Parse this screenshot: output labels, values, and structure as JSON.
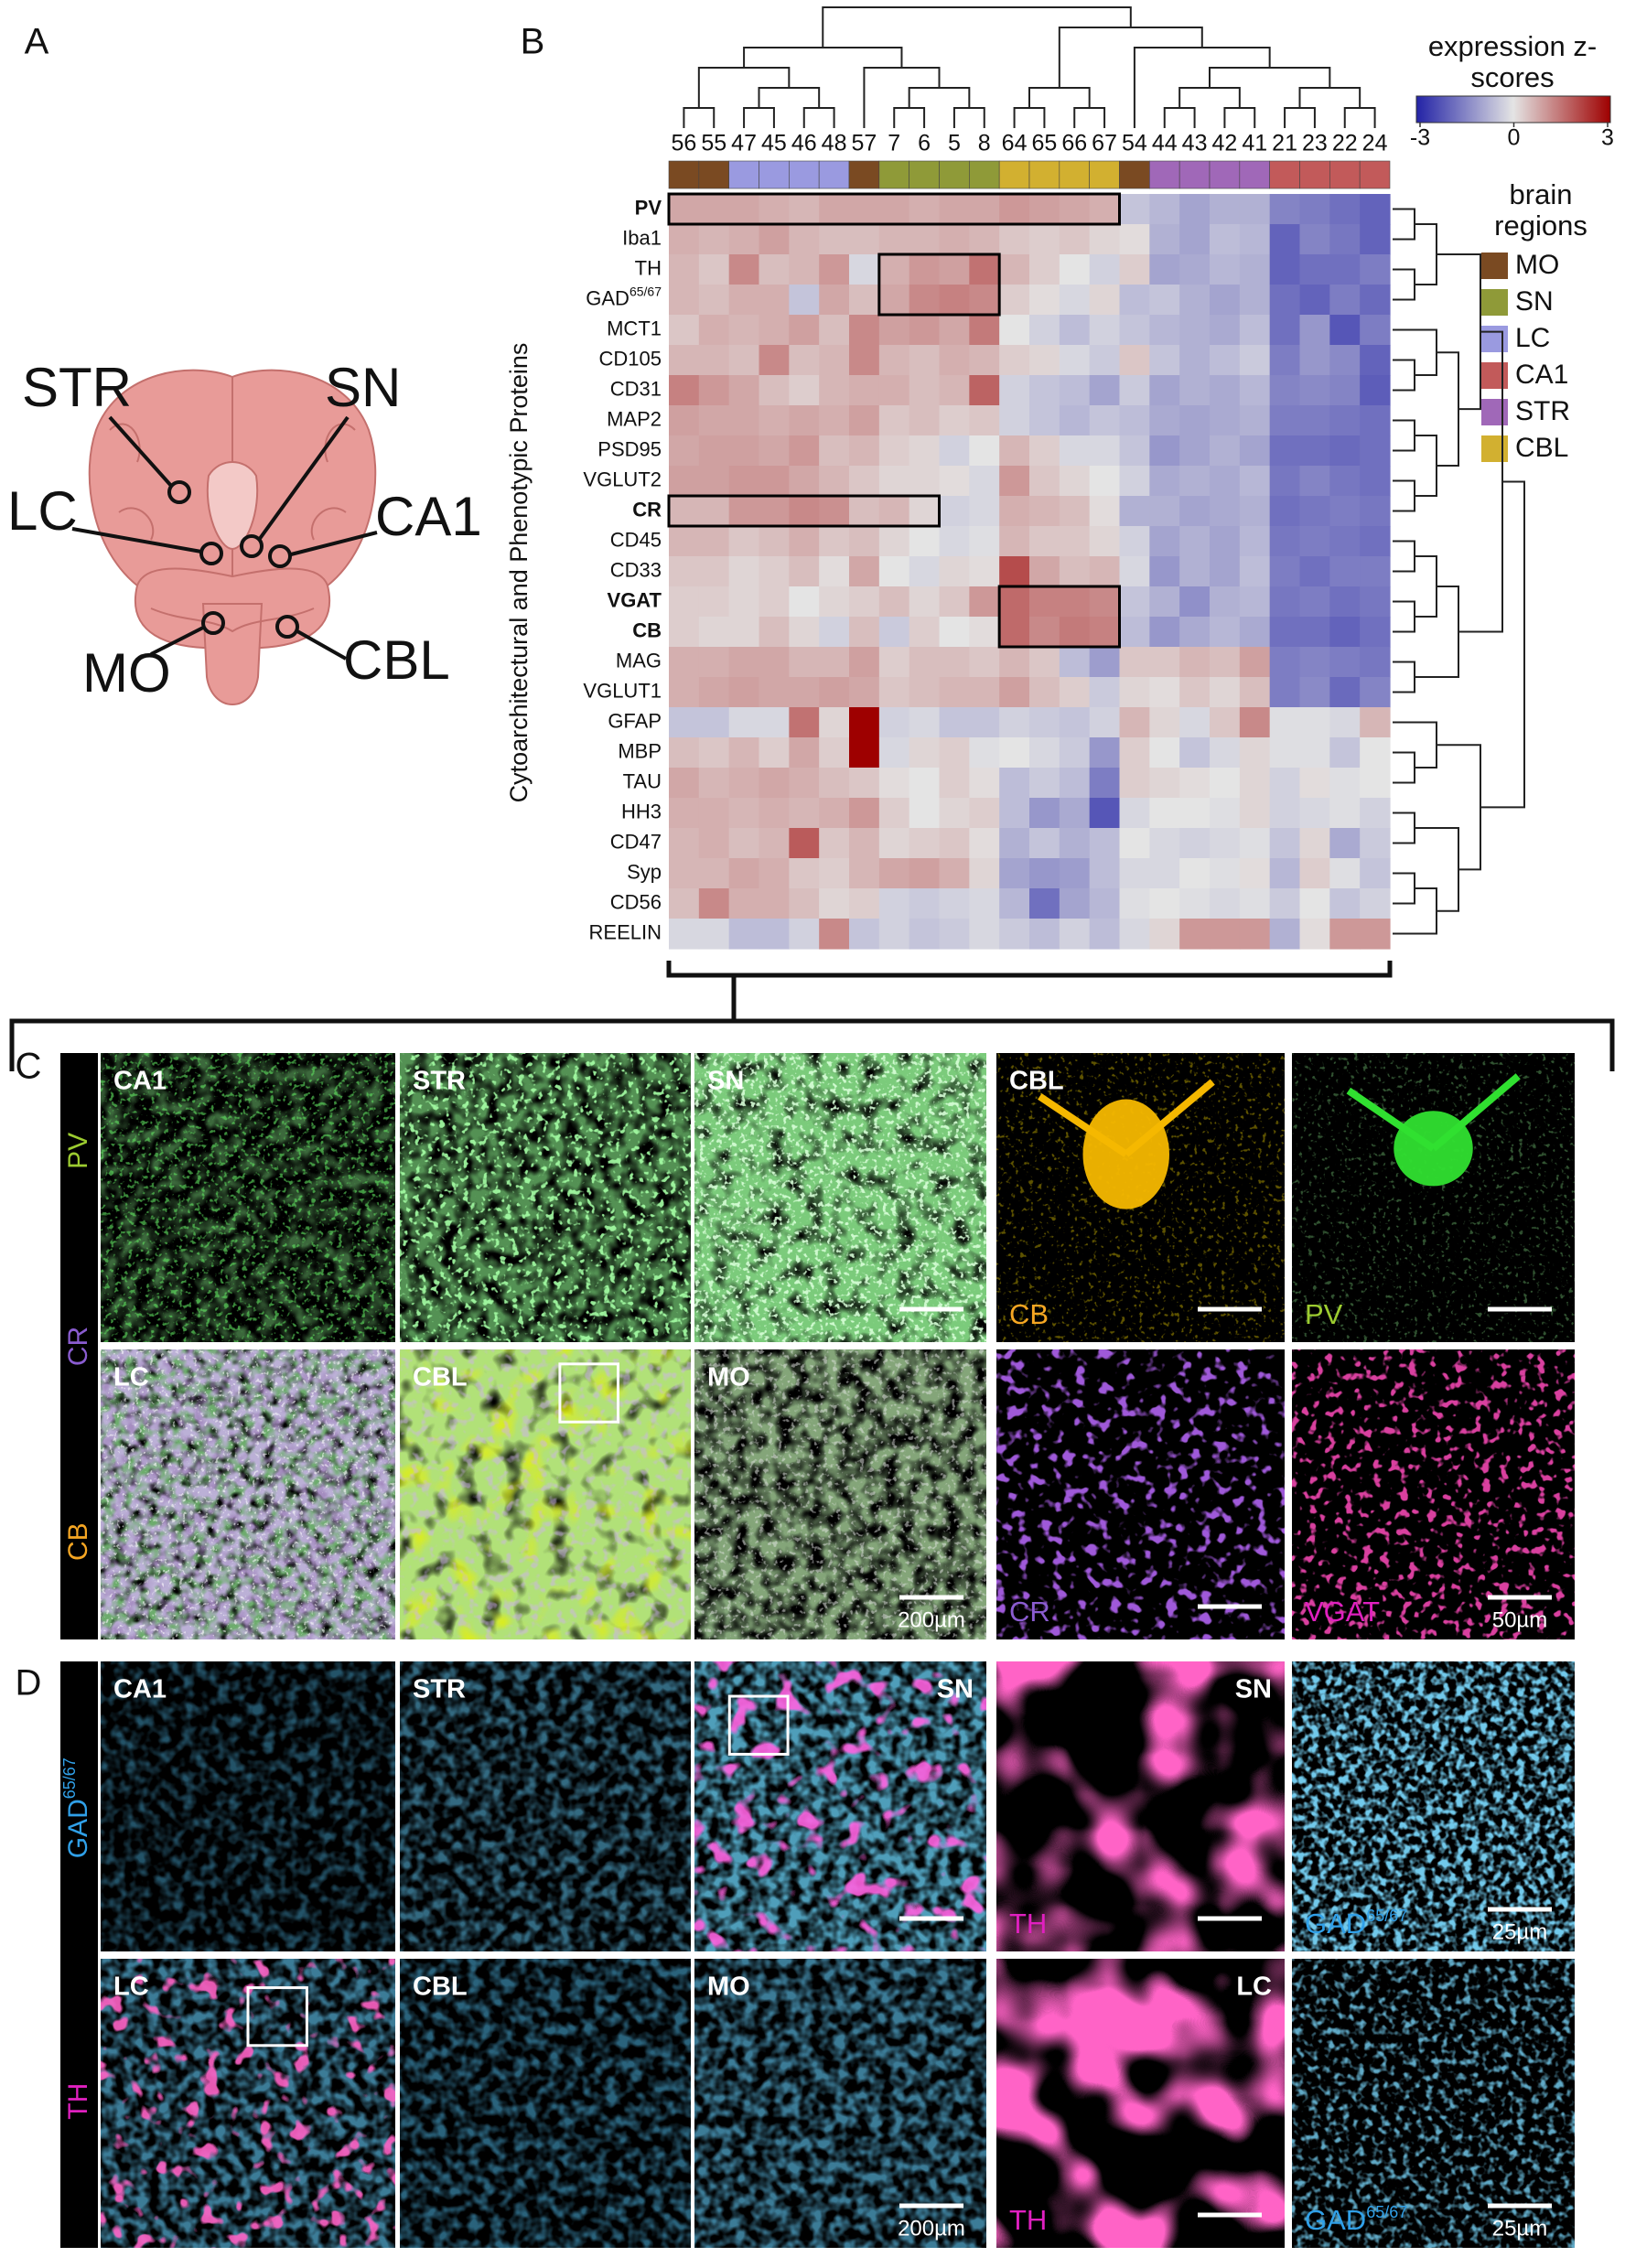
{
  "panel_letters": [
    "A",
    "B",
    "C",
    "D"
  ],
  "panel_a": {
    "regions": [
      "STR",
      "SN",
      "LC",
      "CA1",
      "MO",
      "CBL"
    ]
  },
  "chart_data": {
    "type": "heatmap",
    "y_label": "Cytoarchitectural and Phenotypic Proteins",
    "columns": [
      "56",
      "55",
      "47",
      "45",
      "46",
      "48",
      "57",
      "7",
      "6",
      "5",
      "8",
      "64",
      "65",
      "66",
      "67",
      "54",
      "44",
      "43",
      "42",
      "41",
      "21",
      "23",
      "22",
      "24"
    ],
    "column_regions": [
      "MO",
      "MO",
      "LC",
      "LC",
      "LC",
      "LC",
      "MO",
      "SN",
      "SN",
      "SN",
      "SN",
      "CBL",
      "CBL",
      "CBL",
      "CBL",
      "MO",
      "STR",
      "STR",
      "STR",
      "STR",
      "CA1",
      "CA1",
      "CA1",
      "CA1"
    ],
    "rows": [
      {
        "label": "PV",
        "bold": true
      },
      {
        "label": "Iba1"
      },
      {
        "label": "TH"
      },
      {
        "label": "GAD",
        "sup": "65/67"
      },
      {
        "label": "MCT1"
      },
      {
        "label": "CD105"
      },
      {
        "label": "CD31"
      },
      {
        "label": "MAP2"
      },
      {
        "label": "PSD95"
      },
      {
        "label": "VGLUT2"
      },
      {
        "label": "CR",
        "bold": true
      },
      {
        "label": "CD45"
      },
      {
        "label": "CD33"
      },
      {
        "label": "VGAT",
        "bold": true
      },
      {
        "label": "CB",
        "bold": true
      },
      {
        "label": "MAG"
      },
      {
        "label": "VGLUT1"
      },
      {
        "label": "GFAP"
      },
      {
        "label": "MBP"
      },
      {
        "label": "TAU"
      },
      {
        "label": "HH3"
      },
      {
        "label": "CD47"
      },
      {
        "label": "Syp"
      },
      {
        "label": "CD56"
      },
      {
        "label": "REELIN"
      }
    ],
    "values": [
      [
        0.8,
        0.8,
        0.8,
        0.7,
        0.6,
        0.8,
        0.8,
        0.8,
        0.7,
        0.8,
        0.8,
        1,
        0.9,
        0.8,
        0.7,
        -0.5,
        -0.7,
        -1,
        -0.8,
        -0.8,
        -1.5,
        -1.6,
        -1.8,
        -2
      ],
      [
        0.7,
        0.6,
        0.7,
        0.9,
        0.6,
        0.5,
        0.5,
        0.6,
        0.6,
        0.7,
        0.6,
        0.4,
        0.3,
        0.4,
        0.2,
        0.1,
        -0.8,
        -1,
        -0.6,
        -0.7,
        -2,
        -1.5,
        -1.7,
        -2
      ],
      [
        0.6,
        0.4,
        1.2,
        0.5,
        0.6,
        1,
        -0.2,
        0.7,
        1,
        0.9,
        1.5,
        0.6,
        0.3,
        0,
        -0.3,
        0.3,
        -1,
        -0.9,
        -0.7,
        -0.8,
        -2,
        -1.8,
        -1.8,
        -1.6
      ],
      [
        0.6,
        0.5,
        0.7,
        0.7,
        -0.5,
        0.8,
        0.5,
        0.8,
        1.2,
        1.3,
        1.2,
        0.3,
        0.1,
        -0.2,
        0.2,
        -0.6,
        -0.5,
        -0.8,
        -1,
        -0.8,
        -1.8,
        -2,
        -1.6,
        -1.9
      ],
      [
        0.4,
        0.7,
        0.6,
        0.7,
        0.9,
        0.5,
        1.2,
        0.9,
        1,
        0.8,
        1.4,
        0,
        -0.3,
        -0.6,
        -0.3,
        -0.5,
        -0.7,
        -0.8,
        -0.9,
        -0.6,
        -1.8,
        -1.2,
        -2.2,
        -1.6
      ],
      [
        0.6,
        0.6,
        0.5,
        1.2,
        0.5,
        0.6,
        1.2,
        0.6,
        0.5,
        0.7,
        0.6,
        0.3,
        0.2,
        -0.2,
        -0.4,
        0.4,
        -0.5,
        -0.8,
        -0.6,
        -0.4,
        -1.6,
        -1.2,
        -1.4,
        -2
      ],
      [
        1.3,
        1,
        0.8,
        0.5,
        0.3,
        0.6,
        0.7,
        0.7,
        0.5,
        0.6,
        1.7,
        -0.3,
        -0.5,
        -0.6,
        -1,
        -0.4,
        -1,
        -0.8,
        -0.9,
        -0.7,
        -1.5,
        -1.4,
        -1.5,
        -2.1
      ],
      [
        0.9,
        0.8,
        0.8,
        0.7,
        0.8,
        0.7,
        0.9,
        0.4,
        0.5,
        0.3,
        0.4,
        -0.3,
        -0.5,
        -0.7,
        -0.5,
        -0.6,
        -0.9,
        -1,
        -0.9,
        -0.8,
        -1.6,
        -1.6,
        -1.7,
        -1.8
      ],
      [
        0.8,
        0.9,
        0.9,
        0.8,
        1,
        0.5,
        0.6,
        0.3,
        0.2,
        -0.3,
        0,
        0.6,
        0.3,
        -0.2,
        -0.2,
        -0.5,
        -1.2,
        -1,
        -0.8,
        -1,
        -1.8,
        -1.8,
        -1.9,
        -1.8
      ],
      [
        0.9,
        0.9,
        1,
        1,
        0.8,
        0.6,
        0.4,
        0.2,
        0.2,
        0.1,
        -0.2,
        1,
        0.4,
        0.2,
        0,
        -0.3,
        -0.9,
        -0.8,
        -0.9,
        -0.7,
        -1.7,
        -1.5,
        -1.7,
        -1.8
      ],
      [
        0.6,
        0.6,
        1,
        1,
        1.2,
        1.1,
        0.5,
        0.6,
        0.2,
        -0.3,
        -0.2,
        0.7,
        0.6,
        0.5,
        0.1,
        -0.8,
        -0.8,
        -1,
        -0.9,
        -0.8,
        -1.8,
        -1.7,
        -1.6,
        -1.7
      ],
      [
        0.6,
        0.6,
        0.4,
        0.5,
        0.7,
        0.4,
        0.5,
        0.2,
        0,
        -0.2,
        -0.1,
        0.6,
        0.4,
        0.4,
        0.2,
        -0.3,
        -1,
        -0.8,
        -1,
        -0.7,
        -1.7,
        -1.6,
        -1.7,
        -1.8
      ],
      [
        0.4,
        0.4,
        0.2,
        0.3,
        0.5,
        0.1,
        0.8,
        0,
        -0.2,
        0.2,
        0.1,
        2,
        0.8,
        0.5,
        0.6,
        -0.2,
        -1.2,
        -0.8,
        -1,
        -0.6,
        -1.6,
        -1.8,
        -1.6,
        -1.6
      ],
      [
        0.3,
        0.3,
        0.2,
        0.3,
        0,
        0.2,
        0.3,
        0.5,
        0.2,
        0.4,
        1,
        1.6,
        1.3,
        1.3,
        1.2,
        -0.5,
        -0.8,
        -1.3,
        -0.8,
        -0.7,
        -1.7,
        -1.6,
        -1.8,
        -1.7
      ],
      [
        0.3,
        0.2,
        0.2,
        0.5,
        0.2,
        -0.3,
        0.5,
        -0.4,
        0.3,
        0,
        0.1,
        1.6,
        1.2,
        1.4,
        1.3,
        -0.6,
        -1.2,
        -0.9,
        -0.7,
        -0.9,
        -1.8,
        -1.8,
        -2,
        -1.8
      ],
      [
        0.7,
        0.7,
        0.8,
        0.8,
        0.6,
        0.6,
        0.9,
        0.3,
        0.5,
        0.5,
        0.4,
        0.6,
        0.4,
        -0.6,
        -1.1,
        0.4,
        0.4,
        0.6,
        0.5,
        0.9,
        -1.6,
        -1.5,
        -1.6,
        -1.7
      ],
      [
        0.7,
        0.8,
        0.9,
        0.8,
        0.8,
        0.9,
        0.8,
        0.4,
        0.5,
        0.6,
        0.6,
        0.9,
        0.5,
        0.3,
        -0.4,
        0.2,
        0.1,
        0.4,
        0.2,
        0.5,
        -1.6,
        -1.4,
        -1.9,
        -1.5
      ],
      [
        -0.5,
        -0.5,
        -0.2,
        -0.2,
        1.5,
        0.2,
        3,
        -0.3,
        -0.2,
        -0.5,
        -0.5,
        -0.3,
        -0.4,
        -0.5,
        -0.3,
        0.6,
        0.2,
        -0.2,
        0.4,
        1.2,
        -0.1,
        -0.1,
        -0.2,
        0.6
      ],
      [
        0.5,
        0.4,
        0.6,
        0.3,
        0.8,
        0.3,
        3,
        -0.2,
        0.2,
        0.3,
        -0.1,
        0,
        -0.2,
        -0.4,
        -1.2,
        0.3,
        0,
        -0.5,
        -0.2,
        0.2,
        -0.1,
        -0.1,
        -0.5,
        0
      ],
      [
        0.8,
        0.6,
        0.7,
        0.8,
        0.7,
        0.5,
        0.4,
        0.1,
        0,
        0.3,
        0.1,
        -0.6,
        -0.4,
        -0.6,
        -1.6,
        0.3,
        0.2,
        0.1,
        0,
        0.2,
        -0.3,
        0.1,
        -0.1,
        0
      ],
      [
        0.7,
        0.7,
        0.6,
        0.7,
        0.6,
        0.7,
        1,
        0.3,
        0,
        0.2,
        0.3,
        -0.6,
        -1.2,
        -0.9,
        -2.2,
        -0.2,
        0,
        0,
        -0.1,
        0.2,
        -0.3,
        -0.2,
        -0.1,
        -0.3
      ],
      [
        0.6,
        0.7,
        0.5,
        0.6,
        1.8,
        0.4,
        0.6,
        0.2,
        0.3,
        0.4,
        0.1,
        -0.8,
        -0.5,
        -0.8,
        -0.6,
        0,
        -0.2,
        -0.3,
        -0.2,
        -0.1,
        -0.5,
        0.2,
        -0.9,
        -0.4
      ],
      [
        0.6,
        0.6,
        0.8,
        0.7,
        0.4,
        0.3,
        0.6,
        0.8,
        0.9,
        0.7,
        0.2,
        -1,
        -1.2,
        -1.1,
        -0.6,
        -0.2,
        -0.2,
        0,
        -0.1,
        0.1,
        -0.7,
        0.3,
        -0.1,
        -0.5
      ],
      [
        0.5,
        1.2,
        0.7,
        0.7,
        0.5,
        0.2,
        0.3,
        -0.3,
        -0.4,
        -0.3,
        -0.2,
        -0.7,
        -1.8,
        -1,
        -0.7,
        -0.1,
        0,
        -0.1,
        -0.2,
        -0.1,
        -0.4,
        0,
        -0.5,
        -0.3
      ],
      [
        -0.2,
        -0.2,
        -0.6,
        -0.6,
        -0.3,
        1.2,
        -0.5,
        -0.3,
        -0.5,
        -0.4,
        -0.2,
        -0.4,
        -0.6,
        -0.3,
        -0.6,
        -0.2,
        0.2,
        1,
        1,
        1,
        -0.8,
        0.1,
        1,
        1
      ]
    ],
    "colorbar": {
      "title": "expression z-scores",
      "lim": [
        -3,
        3
      ],
      "ticks": [
        -3,
        0,
        3
      ],
      "colors": [
        "#2323a6",
        "#e4e4e4",
        "#9e0000"
      ]
    },
    "legend": {
      "title": "brain regions",
      "regions": [
        {
          "name": "MO",
          "color": "#7a4a22"
        },
        {
          "name": "SN",
          "color": "#8f9a38"
        },
        {
          "name": "LC",
          "color": "#9a9ae0"
        },
        {
          "name": "CA1",
          "color": "#c25a5a"
        },
        {
          "name": "STR",
          "color": "#a068b8"
        },
        {
          "name": "CBL",
          "color": "#d2b030"
        }
      ]
    },
    "highlights": [
      {
        "rows": [
          0,
          0
        ],
        "cols": [
          0,
          14
        ]
      },
      {
        "rows": [
          2,
          3
        ],
        "cols": [
          7,
          10
        ]
      },
      {
        "rows": [
          10,
          10
        ],
        "cols": [
          0,
          8
        ]
      },
      {
        "rows": [
          13,
          14
        ],
        "cols": [
          11,
          14
        ]
      }
    ]
  },
  "panel_c": {
    "channels": [
      {
        "text": "PV",
        "color": "#9ccc30"
      },
      {
        "text": "CR",
        "color": "#8a5cd0"
      },
      {
        "text": "CB",
        "color": "#f5a623"
      }
    ],
    "tiles": [
      [
        {
          "label": "CA1"
        },
        {
          "label": "STR"
        },
        {
          "label": "SN",
          "scale_bar": true
        },
        {
          "label": "CBL",
          "channel": {
            "text": "CB",
            "color": "#f5a623"
          },
          "scale_bar": true
        },
        {
          "channel": {
            "text": "PV",
            "color": "#9ccc30"
          },
          "scale_bar": true
        }
      ],
      [
        {
          "label": "LC"
        },
        {
          "label": "CBL"
        },
        {
          "label": "MO",
          "scale_bar": true,
          "scale": "200µm"
        },
        {
          "channel": {
            "text": "CR",
            "color": "#8a5cd0"
          },
          "scale_bar": true
        },
        {
          "channel": {
            "text": "VGAT",
            "color": "#e020c0"
          },
          "scale_bar": true,
          "scale": "50µm"
        }
      ]
    ]
  },
  "panel_d": {
    "channels": [
      {
        "text": "GAD",
        "sup": "65/67",
        "color": "#30a0e8"
      },
      {
        "text": "TH",
        "color": "#e020c0"
      }
    ],
    "tiles": [
      [
        {
          "label": "CA1"
        },
        {
          "label": "STR"
        },
        {
          "label": "SN",
          "scale_bar": true
        },
        {
          "label": "SN",
          "channel": {
            "text": "TH",
            "color": "#e020c0"
          },
          "scale_bar": true
        },
        {
          "channel": {
            "text": "GAD",
            "sup": "65/67",
            "color": "#30a0e8"
          },
          "scale_bar": true,
          "scale": "25µm"
        }
      ],
      [
        {
          "label": "LC"
        },
        {
          "label": "CBL"
        },
        {
          "label": "MO",
          "scale_bar": true,
          "scale": "200µm"
        },
        {
          "label": "LC",
          "channel": {
            "text": "TH",
            "color": "#e020c0"
          },
          "scale_bar": true
        },
        {
          "channel": {
            "text": "GAD",
            "sup": "65/67",
            "color": "#30a0e8"
          },
          "scale_bar": true,
          "scale": "25µm"
        }
      ]
    ]
  }
}
